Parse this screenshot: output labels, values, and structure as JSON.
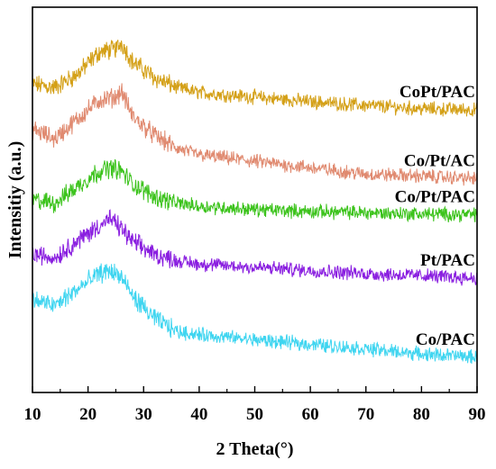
{
  "chart_data": {
    "type": "line",
    "title": "",
    "xlabel": "2 Theta(°)",
    "ylabel": "Intensitiy (a.u.)",
    "xlim": [
      10,
      90
    ],
    "xticks": [
      10,
      20,
      30,
      40,
      50,
      60,
      70,
      80,
      90
    ],
    "yticks_shown": false,
    "grid": false,
    "legend": "none (series labeled inline at right end of each trace)",
    "series": [
      {
        "name": "CoPt/PAC",
        "color": "#d4a017",
        "x": [
          10,
          14,
          18,
          22,
          25,
          26,
          28,
          32,
          36,
          40,
          50,
          60,
          70,
          80,
          90
        ],
        "y": [
          4.4,
          4.35,
          4.55,
          4.9,
          4.95,
          5.05,
          4.75,
          4.5,
          4.35,
          4.27,
          4.2,
          4.13,
          4.07,
          4.02,
          4.0
        ]
      },
      {
        "name": "Co/Pt/AC",
        "color": "#e08a70",
        "x": [
          10,
          14,
          18,
          22,
          25,
          26,
          28,
          32,
          36,
          40,
          50,
          60,
          70,
          80,
          90
        ],
        "y": [
          3.7,
          3.55,
          3.85,
          4.15,
          4.2,
          4.3,
          3.9,
          3.6,
          3.4,
          3.3,
          3.2,
          3.1,
          3.0,
          2.97,
          2.93
        ]
      },
      {
        "name": "Co/Pt/PAC",
        "color": "#3cc31c",
        "x": [
          10,
          14,
          18,
          22,
          24,
          26,
          28,
          32,
          36,
          40,
          50,
          60,
          70,
          80,
          90
        ],
        "y": [
          2.6,
          2.55,
          2.8,
          3.05,
          3.1,
          3.05,
          2.85,
          2.65,
          2.55,
          2.5,
          2.45,
          2.42,
          2.4,
          2.38,
          2.37
        ]
      },
      {
        "name": "Pt/PAC",
        "color": "#8a1fe0",
        "x": [
          10,
          14,
          18,
          22,
          24,
          26,
          28,
          32,
          36,
          40,
          50,
          60,
          70,
          80,
          90
        ],
        "y": [
          1.75,
          1.7,
          1.95,
          2.2,
          2.3,
          2.15,
          1.95,
          1.75,
          1.65,
          1.6,
          1.55,
          1.5,
          1.45,
          1.42,
          1.38
        ]
      },
      {
        "name": "Co/PAC",
        "color": "#3fd5f0",
        "x": [
          10,
          14,
          18,
          22,
          24,
          26,
          28,
          32,
          36,
          40,
          50,
          60,
          70,
          80,
          90
        ],
        "y": [
          1.05,
          0.95,
          1.2,
          1.45,
          1.5,
          1.4,
          1.1,
          0.75,
          0.55,
          0.5,
          0.42,
          0.35,
          0.28,
          0.2,
          0.15
        ]
      }
    ]
  }
}
